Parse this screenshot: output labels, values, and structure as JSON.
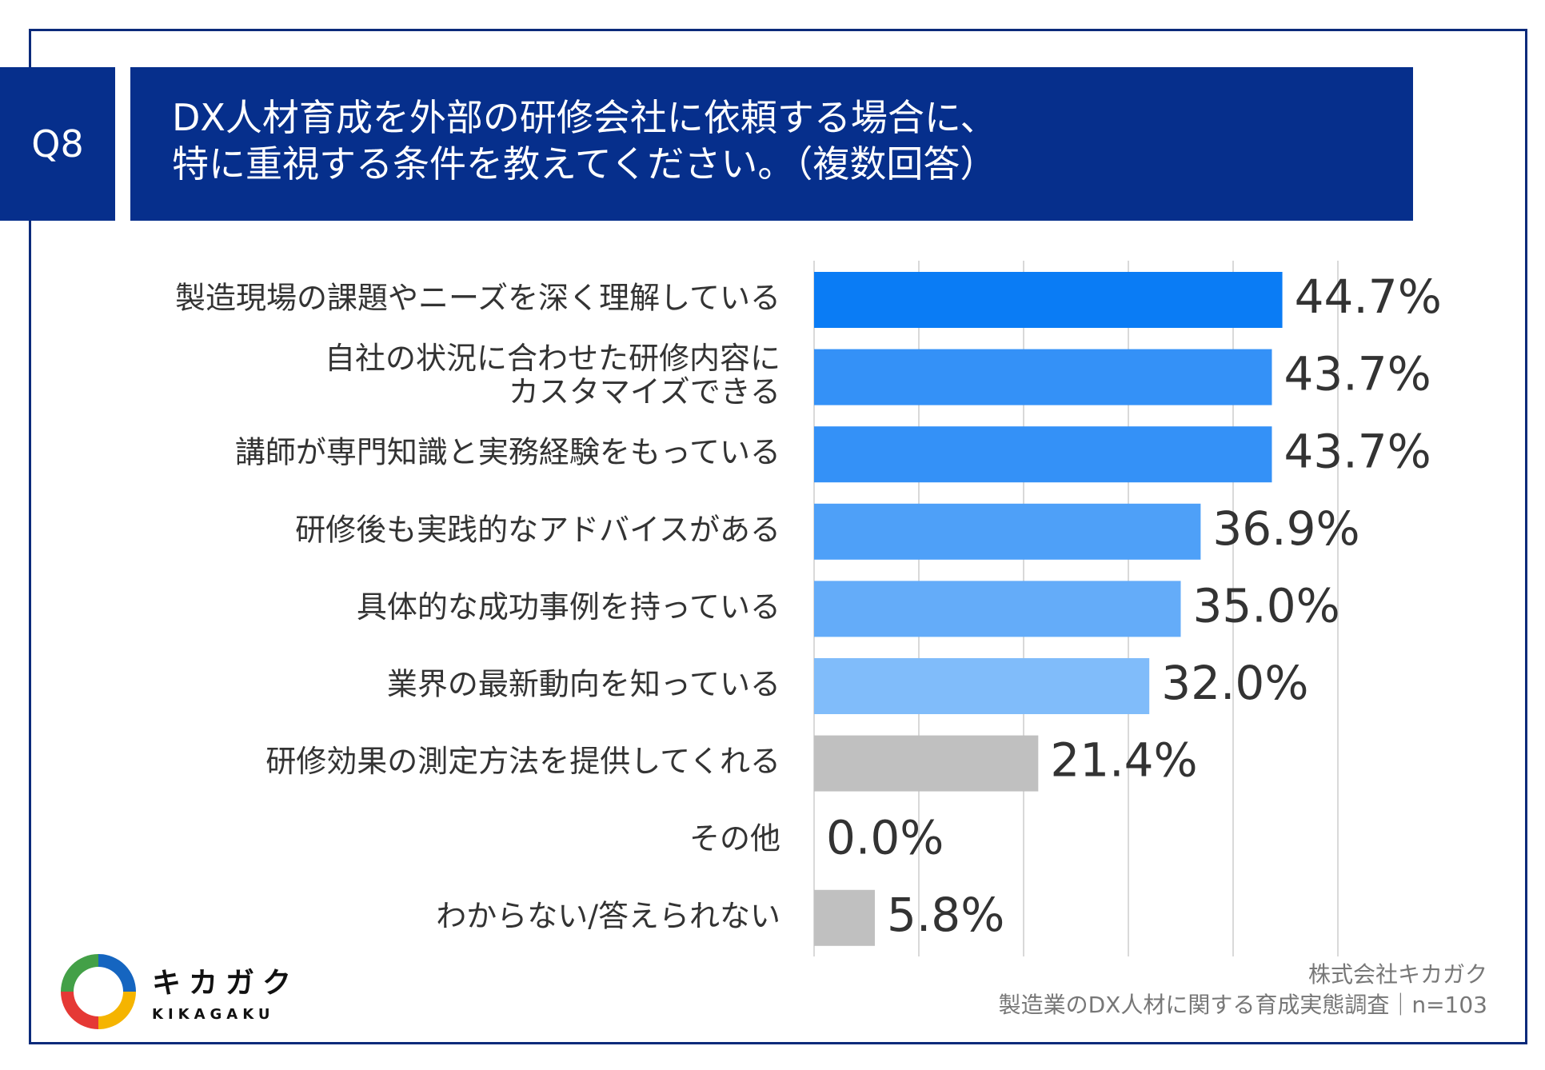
{
  "header": {
    "badge": "Q8",
    "title_line1": "DX人材育成を外部の研修会社に依頼する場合に、",
    "title_line2": "特に重視する条件を教えてください。（複数回答）"
  },
  "chart_data": {
    "type": "bar",
    "orientation": "horizontal",
    "categories": [
      [
        "製造現場の課題やニーズを深く理解している"
      ],
      [
        "自社の状況に合わせた研修内容に",
        "カスタマイズできる"
      ],
      [
        "講師が専門知識と実務経験をもっている"
      ],
      [
        "研修後も実践的なアドバイスがある"
      ],
      [
        "具体的な成功事例を持っている"
      ],
      [
        "業界の最新動向を知っている"
      ],
      [
        "研修効果の測定方法を提供してくれる"
      ],
      [
        "その他"
      ],
      [
        "わからない/答えられない"
      ]
    ],
    "values": [
      44.7,
      43.7,
      43.7,
      36.9,
      35.0,
      32.0,
      21.4,
      0.0,
      5.8
    ],
    "value_labels": [
      "44.7%",
      "43.7%",
      "43.7%",
      "36.9%",
      "35.0%",
      "32.0%",
      "21.4%",
      "0.0%",
      "5.8%"
    ],
    "colors": [
      "#0a7cf5",
      "#3491f7",
      "#3491f7",
      "#4ea0f8",
      "#64acf9",
      "#80bcfa",
      "#c0c0c0",
      "#c0c0c0",
      "#c0c0c0"
    ],
    "xlim": [
      0,
      50
    ],
    "grid": true,
    "gridline_color": "#d9d9d9"
  },
  "footer": {
    "company": "株式会社キカガク",
    "survey": "製造業のDX人材に関する育成実態調査｜n=103"
  },
  "logo": {
    "text_jp": "キカガク",
    "text_en": "KIKAGAKU"
  }
}
